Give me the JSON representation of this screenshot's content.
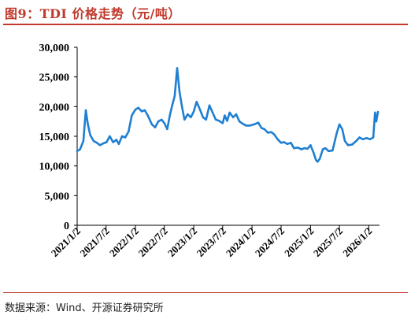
{
  "figure": {
    "title": "图9：TDI 价格走势（元/吨）",
    "source": "数据来源：Wind、开源证券研究所"
  },
  "colors": {
    "accent": "#c0392b",
    "line": "#1f7fd1"
  },
  "chart_data": {
    "type": "line",
    "title": "",
    "xlabel": "",
    "ylabel": "",
    "ylim": [
      0,
      30000
    ],
    "y_ticks": [
      0,
      5000,
      10000,
      15000,
      20000,
      25000,
      30000
    ],
    "y_tick_labels": [
      "0",
      "5,000",
      "10,000",
      "15,000",
      "20,000",
      "25,000",
      "30,000"
    ],
    "x_tick_dates": [
      "2021-01-02",
      "2021-07-02",
      "2022-01-02",
      "2022-07-02",
      "2023-01-02",
      "2023-07-02",
      "2024-01-02",
      "2024-07-02",
      "2025-01-02",
      "2025-07-02",
      "2026-01-02"
    ],
    "x_tick_labels": [
      "2021/1/2",
      "2021/7/2",
      "2022/1/2",
      "2022/7/2",
      "2023/1/2",
      "2023/7/2",
      "2024/1/2",
      "2024/7/2",
      "2025/1/2",
      "2025/7/2",
      "2026/1/2"
    ],
    "grid": false,
    "legend": "none",
    "series": [
      {
        "points": [
          [
            "2021-01-02",
            12500
          ],
          [
            "2021-01-20",
            12800
          ],
          [
            "2021-02-10",
            14200
          ],
          [
            "2021-02-25",
            19400
          ],
          [
            "2021-03-10",
            17000
          ],
          [
            "2021-03-25",
            15200
          ],
          [
            "2021-04-15",
            14200
          ],
          [
            "2021-05-05",
            13900
          ],
          [
            "2021-05-25",
            13500
          ],
          [
            "2021-06-15",
            13800
          ],
          [
            "2021-07-05",
            14000
          ],
          [
            "2021-07-25",
            15000
          ],
          [
            "2021-08-15",
            14000
          ],
          [
            "2021-09-05",
            14400
          ],
          [
            "2021-09-20",
            13700
          ],
          [
            "2021-10-10",
            15000
          ],
          [
            "2021-10-30",
            14800
          ],
          [
            "2021-11-20",
            15800
          ],
          [
            "2021-12-10",
            18500
          ],
          [
            "2022-01-02",
            19500
          ],
          [
            "2022-01-20",
            19800
          ],
          [
            "2022-02-10",
            19200
          ],
          [
            "2022-03-01",
            19400
          ],
          [
            "2022-03-20",
            18500
          ],
          [
            "2022-04-15",
            17000
          ],
          [
            "2022-05-05",
            16500
          ],
          [
            "2022-05-25",
            17500
          ],
          [
            "2022-06-15",
            17800
          ],
          [
            "2022-07-02",
            17200
          ],
          [
            "2022-07-20",
            16200
          ],
          [
            "2022-08-05",
            18500
          ],
          [
            "2022-08-20",
            20200
          ],
          [
            "2022-09-05",
            21800
          ],
          [
            "2022-09-20",
            26500
          ],
          [
            "2022-10-05",
            22500
          ],
          [
            "2022-10-20",
            20000
          ],
          [
            "2022-11-05",
            17800
          ],
          [
            "2022-11-25",
            18700
          ],
          [
            "2022-12-15",
            18200
          ],
          [
            "2023-01-02",
            19200
          ],
          [
            "2023-01-20",
            20800
          ],
          [
            "2023-02-10",
            19500
          ],
          [
            "2023-03-01",
            18200
          ],
          [
            "2023-03-20",
            17800
          ],
          [
            "2023-04-10",
            20200
          ],
          [
            "2023-04-30",
            19000
          ],
          [
            "2023-05-20",
            17800
          ],
          [
            "2023-06-10",
            17600
          ],
          [
            "2023-07-02",
            17200
          ],
          [
            "2023-07-15",
            18500
          ],
          [
            "2023-07-30",
            17600
          ],
          [
            "2023-08-15",
            19000
          ],
          [
            "2023-09-05",
            18200
          ],
          [
            "2023-09-25",
            18700
          ],
          [
            "2023-10-15",
            17500
          ],
          [
            "2023-11-05",
            17100
          ],
          [
            "2023-11-25",
            16800
          ],
          [
            "2023-12-20",
            16800
          ],
          [
            "2024-01-15",
            17000
          ],
          [
            "2024-02-10",
            17300
          ],
          [
            "2024-03-01",
            16400
          ],
          [
            "2024-03-20",
            16200
          ],
          [
            "2024-04-10",
            15600
          ],
          [
            "2024-05-01",
            15700
          ],
          [
            "2024-05-20",
            15300
          ],
          [
            "2024-06-10",
            14500
          ],
          [
            "2024-07-02",
            13900
          ],
          [
            "2024-07-20",
            14000
          ],
          [
            "2024-08-10",
            13700
          ],
          [
            "2024-09-01",
            13900
          ],
          [
            "2024-09-20",
            13000
          ],
          [
            "2024-10-15",
            13100
          ],
          [
            "2024-11-05",
            12800
          ],
          [
            "2024-11-25",
            13000
          ],
          [
            "2024-12-15",
            12900
          ],
          [
            "2025-01-02",
            13500
          ],
          [
            "2025-01-20",
            12300
          ],
          [
            "2025-02-05",
            11000
          ],
          [
            "2025-02-15",
            10700
          ],
          [
            "2025-03-01",
            11200
          ],
          [
            "2025-03-20",
            12800
          ],
          [
            "2025-04-05",
            13000
          ],
          [
            "2025-04-25",
            12500
          ],
          [
            "2025-05-20",
            12600
          ],
          [
            "2025-06-15",
            15500
          ],
          [
            "2025-07-02",
            17000
          ],
          [
            "2025-07-20",
            16200
          ],
          [
            "2025-08-05",
            14200
          ],
          [
            "2025-08-25",
            13500
          ],
          [
            "2025-09-20",
            13600
          ],
          [
            "2025-10-15",
            14200
          ],
          [
            "2025-11-05",
            14800
          ],
          [
            "2025-11-25",
            14500
          ],
          [
            "2025-12-20",
            14700
          ],
          [
            "2026-01-10",
            14500
          ],
          [
            "2026-01-30",
            14800
          ],
          [
            "2026-02-10",
            19000
          ],
          [
            "2026-02-18",
            17500
          ],
          [
            "2026-02-28",
            19100
          ]
        ]
      }
    ]
  }
}
